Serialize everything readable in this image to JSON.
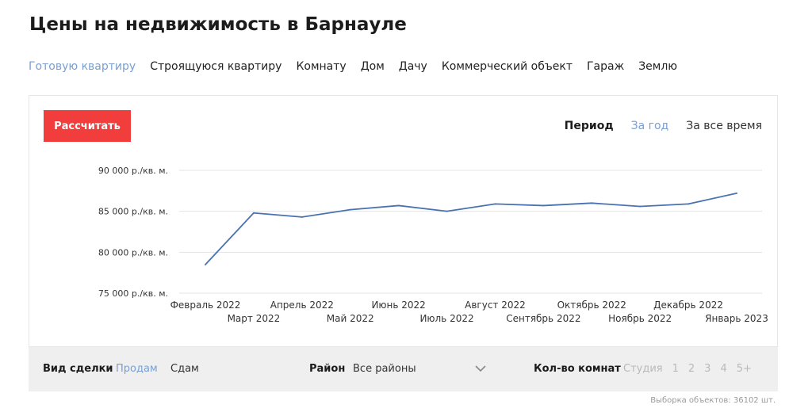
{
  "title": "Цены на недвижимость в Барнауле",
  "property_tabs": [
    "Готовую квартиру",
    "Строящуюся квартиру",
    "Комнату",
    "Дом",
    "Дачу",
    "Коммерческий объект",
    "Гараж",
    "Землю"
  ],
  "active_property_tab": "Готовую квартиру",
  "calculate_button": "Рассчитать",
  "period": {
    "label": "Период",
    "options": [
      "За год",
      "За все время"
    ],
    "selected": "За год"
  },
  "filters": {
    "deal_label": "Вид сделки",
    "deal_options": [
      "Продам",
      "Сдам"
    ],
    "deal_selected": "Продам",
    "district_label": "Район",
    "district_value": "Все районы",
    "rooms_label": "Кол-во комнат",
    "rooms_options": [
      "Студия",
      "1",
      "2",
      "3",
      "4",
      "5+"
    ]
  },
  "sample_count": "Выборка объектов: 36102 шт.",
  "colors": {
    "accent": "#7a9fd1",
    "button": "#f23d3d",
    "line": "#4a72b0",
    "grid": "#e3e3e3",
    "filter_bg": "#efefef"
  },
  "icons": {
    "district_dropdown": "chevron-down-icon"
  },
  "chart_data": {
    "type": "line",
    "categories": [
      "Февраль 2022",
      "Март 2022",
      "Апрель 2022",
      "Май 2022",
      "Июнь 2022",
      "Июль 2022",
      "Август 2022",
      "Сентябрь 2022",
      "Октябрь 2022",
      "Ноябрь 2022",
      "Декабрь 2022",
      "Январь 2023"
    ],
    "series": [
      {
        "values": [
          78500,
          84800,
          84300,
          85200,
          85700,
          85000,
          85900,
          85700,
          86000,
          85600,
          85900,
          87200
        ]
      }
    ],
    "y_ticks": [
      {
        "value": 90000,
        "label": "90 000 р./кв. м."
      },
      {
        "value": 85000,
        "label": "85 000 р./кв. м."
      },
      {
        "value": 80000,
        "label": "80 000 р./кв. м."
      },
      {
        "value": 75000,
        "label": "75 000 р./кв. м."
      }
    ],
    "ylim": [
      75000,
      90000
    ],
    "grid": true,
    "legend": false
  }
}
